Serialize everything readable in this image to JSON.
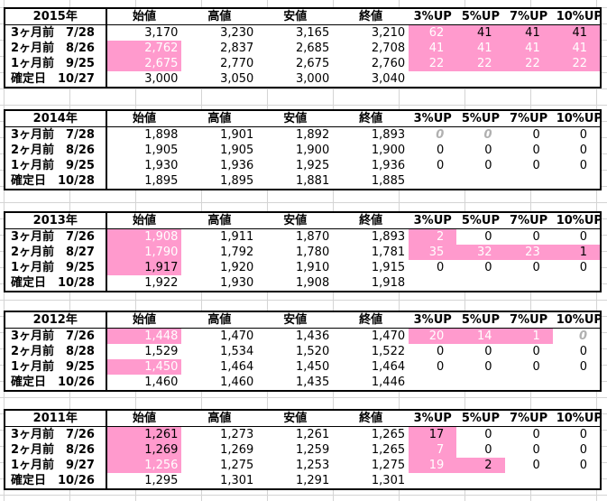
{
  "headers": {
    "open": "始値",
    "high": "高値",
    "low": "安値",
    "close": "終値",
    "p3": "3%UP",
    "p5": "5%UP",
    "p7": "7%UP",
    "p10": "10%UP"
  },
  "blocks": [
    {
      "year": "2015年",
      "rows": [
        {
          "label": "3ヶ月前　7/28",
          "open": "3,170",
          "high": "3,230",
          "low": "3,165",
          "close": "3,210",
          "p3": "62",
          "p5": "41",
          "p7": "41",
          "p10": "41"
        },
        {
          "label": "2ヶ月前　8/26",
          "open": "2,762",
          "high": "2,837",
          "low": "2,685",
          "close": "2,708",
          "p3": "41",
          "p5": "41",
          "p7": "41",
          "p10": "41"
        },
        {
          "label": "1ヶ月前　9/25",
          "open": "2,675",
          "high": "2,770",
          "low": "2,675",
          "close": "2,760",
          "p3": "22",
          "p5": "22",
          "p7": "22",
          "p10": "22"
        },
        {
          "label": "確定日　10/27",
          "open": "3,000",
          "high": "3,050",
          "low": "3,000",
          "close": "3,040"
        }
      ]
    },
    {
      "year": "2014年",
      "rows": [
        {
          "label": "3ヶ月前　7/28",
          "open": "1,898",
          "high": "1,901",
          "low": "1,892",
          "close": "1,893",
          "p3": "0",
          "p5": "0",
          "p7": "0",
          "p10": "0"
        },
        {
          "label": "2ヶ月前　8/26",
          "open": "1,905",
          "high": "1,905",
          "low": "1,900",
          "close": "1,900",
          "p3": "0",
          "p5": "0",
          "p7": "0",
          "p10": "0"
        },
        {
          "label": "1ヶ月前　9/25",
          "open": "1,930",
          "high": "1,936",
          "low": "1,925",
          "close": "1,936",
          "p3": "0",
          "p5": "0",
          "p7": "0",
          "p10": "0"
        },
        {
          "label": "確定日　10/28",
          "open": "1,895",
          "high": "1,895",
          "low": "1,881",
          "close": "1,885"
        }
      ]
    },
    {
      "year": "2013年",
      "rows": [
        {
          "label": "3ヶ月前　7/26",
          "open": "1,908",
          "high": "1,911",
          "low": "1,870",
          "close": "1,893",
          "p3": "2",
          "p5": "0",
          "p7": "0",
          "p10": "0"
        },
        {
          "label": "2ヶ月前　8/27",
          "open": "1,790",
          "high": "1,792",
          "low": "1,780",
          "close": "1,781",
          "p3": "35",
          "p5": "32",
          "p7": "23",
          "p10": "1"
        },
        {
          "label": "1ヶ月前　9/25",
          "open": "1,917",
          "high": "1,920",
          "low": "1,910",
          "close": "1,915",
          "p3": "0",
          "p5": "0",
          "p7": "0",
          "p10": "0"
        },
        {
          "label": "確定日　10/28",
          "open": "1,922",
          "high": "1,930",
          "low": "1,908",
          "close": "1,918"
        }
      ]
    },
    {
      "year": "2012年",
      "rows": [
        {
          "label": "3ヶ月前　7/26",
          "open": "1,448",
          "high": "1,470",
          "low": "1,436",
          "close": "1,470",
          "p3": "20",
          "p5": "14",
          "p7": "1",
          "p10": "0"
        },
        {
          "label": "2ヶ月前　8/28",
          "open": "1,529",
          "high": "1,534",
          "low": "1,520",
          "close": "1,522",
          "p3": "0",
          "p5": "0",
          "p7": "0",
          "p10": "0"
        },
        {
          "label": "1ヶ月前　9/25",
          "open": "1,450",
          "high": "1,464",
          "low": "1,450",
          "close": "1,464",
          "p3": "0",
          "p5": "0",
          "p7": "0",
          "p10": "0"
        },
        {
          "label": "確定日　10/26",
          "open": "1,460",
          "high": "1,460",
          "low": "1,435",
          "close": "1,446"
        }
      ]
    },
    {
      "year": "2011年",
      "rows": [
        {
          "label": "3ヶ月前　7/26",
          "open": "1,261",
          "high": "1,273",
          "low": "1,261",
          "close": "1,265",
          "p3": "17",
          "p5": "0",
          "p7": "0",
          "p10": "0"
        },
        {
          "label": "2ヶ月前　8/26",
          "open": "1,269",
          "high": "1,269",
          "low": "1,259",
          "close": "1,265",
          "p3": "7",
          "p5": "0",
          "p7": "0",
          "p10": "0"
        },
        {
          "label": "1ヶ月前　9/27",
          "open": "1,256",
          "high": "1,275",
          "low": "1,253",
          "close": "1,275",
          "p3": "19",
          "p5": "2",
          "p7": "0",
          "p10": "0"
        },
        {
          "label": "確定日　10/26",
          "open": "1,295",
          "high": "1,301",
          "low": "1,291",
          "close": "1,301"
        }
      ]
    }
  ],
  "colors": {
    "highlight": "#ff9acd",
    "grid": "#d4d4d4"
  }
}
